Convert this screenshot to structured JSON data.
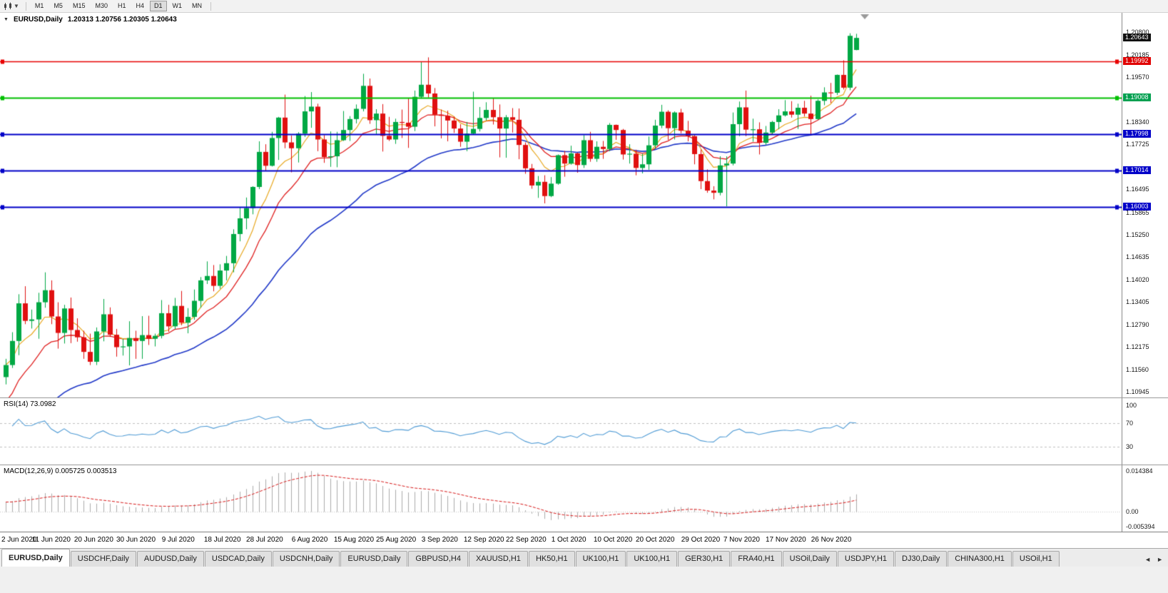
{
  "toolbar": {
    "timeframes": [
      "M1",
      "M5",
      "M15",
      "M30",
      "H1",
      "H4",
      "D1",
      "W1",
      "MN"
    ],
    "active": "D1"
  },
  "chart": {
    "header": {
      "symbol": "EURUSD,Daily",
      "ohlc": "1.20313 1.20756 1.20305 1.20643"
    },
    "price_axis": {
      "labels": [
        {
          "text": "1.20800",
          "value": 1.208
        },
        {
          "text": "1.20185",
          "value": 1.20185
        },
        {
          "text": "1.19570",
          "value": 1.1957
        },
        {
          "text": "1.18340",
          "value": 1.1834
        },
        {
          "text": "1.17725",
          "value": 1.17725
        },
        {
          "text": "1.16495",
          "value": 1.16495
        },
        {
          "text": "1.15865",
          "value": 1.15865
        },
        {
          "text": "1.15250",
          "value": 1.1525
        },
        {
          "text": "1.14635",
          "value": 1.14635
        },
        {
          "text": "1.14020",
          "value": 1.1402
        },
        {
          "text": "1.13405",
          "value": 1.13405
        },
        {
          "text": "1.12790",
          "value": 1.1279
        },
        {
          "text": "1.12175",
          "value": 1.12175
        },
        {
          "text": "1.11560",
          "value": 1.1156
        },
        {
          "text": "1.10945",
          "value": 1.10945
        }
      ],
      "badges": [
        {
          "text": "1.20643",
          "value": 1.20643,
          "bg": "#101010",
          "name": "current-price-badge"
        },
        {
          "text": "1.19992",
          "value": 1.19992,
          "bg": "#e00000",
          "name": "resistance-line-badge"
        },
        {
          "text": "1.19008",
          "value": 1.19008,
          "bg": "#00a050",
          "name": "support-line-badge"
        },
        {
          "text": "1.17998",
          "value": 1.17998,
          "bg": "#0000c8",
          "name": "level-line-badge"
        },
        {
          "text": "1.17014",
          "value": 1.17014,
          "bg": "#0000c8",
          "name": "level-line-badge"
        },
        {
          "text": "1.16003",
          "value": 1.16003,
          "bg": "#0000c8",
          "name": "level-line-badge"
        }
      ]
    },
    "horizontal_lines": [
      {
        "value": 1.19992,
        "color": "#e80000",
        "width": 1.4
      },
      {
        "value": 1.19008,
        "color": "#00c000",
        "width": 2
      },
      {
        "value": 1.17998,
        "color": "#0000c8",
        "width": 2
      },
      {
        "value": 1.17014,
        "color": "#0000c8",
        "width": 2
      },
      {
        "value": 1.16003,
        "color": "#0000c8",
        "width": 2
      }
    ],
    "time_axis": [
      {
        "text": "2 Jun 2020",
        "bar": 0
      },
      {
        "text": "11 Jun 2020",
        "bar": 7
      },
      {
        "text": "20 Jun 2020",
        "bar": 13.5
      },
      {
        "text": "30 Jun 2020",
        "bar": 20
      },
      {
        "text": "9 Jul 2020",
        "bar": 27
      },
      {
        "text": "18 Jul 2020",
        "bar": 33.5
      },
      {
        "text": "28 Jul 2020",
        "bar": 40
      },
      {
        "text": "6 Aug 2020",
        "bar": 47
      },
      {
        "text": "15 Aug 2020",
        "bar": 53.5
      },
      {
        "text": "25 Aug 2020",
        "bar": 60
      },
      {
        "text": "3 Sep 2020",
        "bar": 67
      },
      {
        "text": "12 Sep 2020",
        "bar": 73.5
      },
      {
        "text": "22 Sep 2020",
        "bar": 80
      },
      {
        "text": "1 Oct 2020",
        "bar": 87
      },
      {
        "text": "10 Oct 2020",
        "bar": 93.5
      },
      {
        "text": "20 Oct 2020",
        "bar": 100
      },
      {
        "text": "29 Oct 2020",
        "bar": 107
      },
      {
        "text": "7 Nov 2020",
        "bar": 113.5
      },
      {
        "text": "17 Nov 2020",
        "bar": 120
      },
      {
        "text": "26 Nov 2020",
        "bar": 127
      }
    ]
  },
  "chart_data": {
    "type": "candlestick",
    "symbol": "EURUSD",
    "period": "Daily",
    "y_range": [
      1.1085,
      1.209
    ],
    "bull_color": "#00a844",
    "bear_color": "#e01010",
    "moving_averages": [
      {
        "name": "ma-slow",
        "period": 34,
        "seed": 1.093,
        "color": "#2038c8",
        "width": 1.6
      },
      {
        "name": "ma-mid",
        "period": 13,
        "seed": 1.105,
        "color": "#e02020",
        "width": 1.3
      },
      {
        "name": "ma-fast",
        "period": 7,
        "seed": null,
        "color": "#e8a820",
        "width": 1.2
      }
    ],
    "candles": [
      [
        1.1135,
        1.1185,
        1.1115,
        1.1168
      ],
      [
        1.1168,
        1.1258,
        1.116,
        1.1234
      ],
      [
        1.1234,
        1.1362,
        1.1195,
        1.1337
      ],
      [
        1.1337,
        1.1384,
        1.128,
        1.1289
      ],
      [
        1.1289,
        1.132,
        1.1268,
        1.1293
      ],
      [
        1.1293,
        1.1366,
        1.124,
        1.134
      ],
      [
        1.134,
        1.1422,
        1.1325,
        1.1373
      ],
      [
        1.1373,
        1.14,
        1.128,
        1.1301
      ],
      [
        1.1301,
        1.134,
        1.1213,
        1.1256
      ],
      [
        1.1256,
        1.1333,
        1.1227,
        1.1323
      ],
      [
        1.1323,
        1.1353,
        1.1228,
        1.1264
      ],
      [
        1.1264,
        1.1296,
        1.1232,
        1.1244
      ],
      [
        1.1244,
        1.1262,
        1.1185,
        1.1204
      ],
      [
        1.1204,
        1.1254,
        1.1168,
        1.1177
      ],
      [
        1.1177,
        1.1271,
        1.1168,
        1.126
      ],
      [
        1.126,
        1.1349,
        1.1233,
        1.1307
      ],
      [
        1.1307,
        1.1326,
        1.1245,
        1.1251
      ],
      [
        1.1251,
        1.1267,
        1.1191,
        1.1217
      ],
      [
        1.1217,
        1.124,
        1.1194,
        1.1219
      ],
      [
        1.1219,
        1.1288,
        1.1167,
        1.1242
      ],
      [
        1.1242,
        1.1262,
        1.1185,
        1.1234
      ],
      [
        1.1234,
        1.1302,
        1.1185,
        1.125
      ],
      [
        1.125,
        1.1303,
        1.1223,
        1.124
      ],
      [
        1.124,
        1.1254,
        1.1219,
        1.1248
      ],
      [
        1.1248,
        1.1346,
        1.1241,
        1.131
      ],
      [
        1.131,
        1.1333,
        1.1259,
        1.1274
      ],
      [
        1.1274,
        1.1352,
        1.1266,
        1.133
      ],
      [
        1.133,
        1.1371,
        1.1277,
        1.1284
      ],
      [
        1.1284,
        1.1324,
        1.1255,
        1.13
      ],
      [
        1.13,
        1.1375,
        1.1292,
        1.1344
      ],
      [
        1.1344,
        1.1409,
        1.1325,
        1.14
      ],
      [
        1.14,
        1.1452,
        1.139,
        1.1412
      ],
      [
        1.1412,
        1.1442,
        1.137,
        1.1385
      ],
      [
        1.1385,
        1.1444,
        1.1377,
        1.1427
      ],
      [
        1.1427,
        1.1467,
        1.14,
        1.1447
      ],
      [
        1.1447,
        1.154,
        1.1422,
        1.1527
      ],
      [
        1.1527,
        1.1601,
        1.1507,
        1.157
      ],
      [
        1.157,
        1.1627,
        1.154,
        1.1598
      ],
      [
        1.1598,
        1.1658,
        1.1581,
        1.1656
      ],
      [
        1.1656,
        1.1781,
        1.165,
        1.1752
      ],
      [
        1.1752,
        1.1773,
        1.17,
        1.1714
      ],
      [
        1.1714,
        1.1807,
        1.1712,
        1.179
      ],
      [
        1.179,
        1.1848,
        1.173,
        1.1846
      ],
      [
        1.1846,
        1.1909,
        1.1762,
        1.1778
      ],
      [
        1.1778,
        1.1797,
        1.1696,
        1.1762
      ],
      [
        1.1762,
        1.1806,
        1.1723,
        1.1802
      ],
      [
        1.1802,
        1.1905,
        1.1793,
        1.1863
      ],
      [
        1.1863,
        1.1916,
        1.1818,
        1.1876
      ],
      [
        1.1876,
        1.1884,
        1.1754,
        1.1786
      ],
      [
        1.1786,
        1.1798,
        1.1722,
        1.1738
      ],
      [
        1.1738,
        1.1808,
        1.1711,
        1.174
      ],
      [
        1.174,
        1.1807,
        1.171,
        1.1784
      ],
      [
        1.1784,
        1.1864,
        1.1782,
        1.1812
      ],
      [
        1.1812,
        1.185,
        1.1782,
        1.1842
      ],
      [
        1.1842,
        1.1882,
        1.183,
        1.187
      ],
      [
        1.187,
        1.1966,
        1.1863,
        1.1933
      ],
      [
        1.1933,
        1.1953,
        1.1829,
        1.1839
      ],
      [
        1.1839,
        1.1869,
        1.1801,
        1.1857
      ],
      [
        1.1857,
        1.1883,
        1.1753,
        1.1796
      ],
      [
        1.1796,
        1.1848,
        1.1782,
        1.1786
      ],
      [
        1.1786,
        1.1843,
        1.1774,
        1.1834
      ],
      [
        1.1834,
        1.1868,
        1.179,
        1.1832
      ],
      [
        1.1832,
        1.19,
        1.1763,
        1.1821
      ],
      [
        1.1821,
        1.192,
        1.1809,
        1.1903
      ],
      [
        1.1903,
        1.1998,
        1.1898,
        1.1936
      ],
      [
        1.1936,
        1.2011,
        1.1901,
        1.1912
      ],
      [
        1.1912,
        1.1927,
        1.1822,
        1.1854
      ],
      [
        1.1854,
        1.1868,
        1.1789,
        1.1851
      ],
      [
        1.1851,
        1.1865,
        1.1781,
        1.1838
      ],
      [
        1.1838,
        1.1849,
        1.1804,
        1.1816
      ],
      [
        1.1816,
        1.1828,
        1.1766,
        1.178
      ],
      [
        1.178,
        1.1834,
        1.1754,
        1.1802
      ],
      [
        1.1802,
        1.1917,
        1.1799,
        1.1815
      ],
      [
        1.1815,
        1.1875,
        1.1808,
        1.1845
      ],
      [
        1.1845,
        1.1888,
        1.1838,
        1.1867
      ],
      [
        1.1867,
        1.19,
        1.1827,
        1.1847
      ],
      [
        1.1847,
        1.1882,
        1.1737,
        1.1816
      ],
      [
        1.1816,
        1.1853,
        1.1736,
        1.1847
      ],
      [
        1.1847,
        1.1872,
        1.1805,
        1.184
      ],
      [
        1.184,
        1.1871,
        1.1732,
        1.1771
      ],
      [
        1.1771,
        1.1778,
        1.1692,
        1.1707
      ],
      [
        1.1707,
        1.1719,
        1.1651,
        1.166
      ],
      [
        1.166,
        1.1686,
        1.1626,
        1.167
      ],
      [
        1.167,
        1.1688,
        1.1611,
        1.1631
      ],
      [
        1.1631,
        1.1683,
        1.1628,
        1.1665
      ],
      [
        1.1665,
        1.1745,
        1.1662,
        1.1743
      ],
      [
        1.1743,
        1.1755,
        1.1684,
        1.172
      ],
      [
        1.172,
        1.1769,
        1.1717,
        1.1748
      ],
      [
        1.1748,
        1.175,
        1.1695,
        1.1716
      ],
      [
        1.1716,
        1.1798,
        1.1708,
        1.1784
      ],
      [
        1.1784,
        1.1807,
        1.1725,
        1.1733
      ],
      [
        1.1733,
        1.1781,
        1.1725,
        1.1766
      ],
      [
        1.1766,
        1.1782,
        1.1733,
        1.176
      ],
      [
        1.176,
        1.1831,
        1.1754,
        1.1826
      ],
      [
        1.1826,
        1.1827,
        1.1785,
        1.1812
      ],
      [
        1.1812,
        1.1815,
        1.1731,
        1.1745
      ],
      [
        1.1745,
        1.1773,
        1.172,
        1.1747
      ],
      [
        1.1747,
        1.1758,
        1.1688,
        1.1708
      ],
      [
        1.1708,
        1.1747,
        1.1693,
        1.1718
      ],
      [
        1.1718,
        1.1794,
        1.1703,
        1.177
      ],
      [
        1.177,
        1.184,
        1.176,
        1.1824
      ],
      [
        1.1824,
        1.1881,
        1.1817,
        1.1862
      ],
      [
        1.1862,
        1.1866,
        1.1785,
        1.1817
      ],
      [
        1.1817,
        1.1863,
        1.1786,
        1.186
      ],
      [
        1.186,
        1.187,
        1.1803,
        1.181
      ],
      [
        1.181,
        1.1837,
        1.1781,
        1.1795
      ],
      [
        1.1795,
        1.18,
        1.1718,
        1.1746
      ],
      [
        1.1746,
        1.1759,
        1.165,
        1.1672
      ],
      [
        1.1672,
        1.1704,
        1.164,
        1.1646
      ],
      [
        1.1646,
        1.1658,
        1.1622,
        1.164
      ],
      [
        1.164,
        1.174,
        1.1633,
        1.1715
      ],
      [
        1.1715,
        1.174,
        1.1603,
        1.172
      ],
      [
        1.172,
        1.186,
        1.1715,
        1.1828
      ],
      [
        1.1828,
        1.189,
        1.1795,
        1.1874
      ],
      [
        1.1874,
        1.192,
        1.1795,
        1.1813
      ],
      [
        1.1813,
        1.1843,
        1.178,
        1.1814
      ],
      [
        1.1814,
        1.1833,
        1.1745,
        1.1777
      ],
      [
        1.1777,
        1.1823,
        1.1771,
        1.1805
      ],
      [
        1.1805,
        1.1837,
        1.1799,
        1.1834
      ],
      [
        1.1834,
        1.1869,
        1.1814,
        1.1852
      ],
      [
        1.1852,
        1.1894,
        1.1849,
        1.1863
      ],
      [
        1.1863,
        1.1891,
        1.1846,
        1.1854
      ],
      [
        1.1854,
        1.1884,
        1.1815,
        1.1873
      ],
      [
        1.1873,
        1.1892,
        1.1849,
        1.1857
      ],
      [
        1.1857,
        1.1906,
        1.18,
        1.1842
      ],
      [
        1.1842,
        1.1896,
        1.184,
        1.1892
      ],
      [
        1.1892,
        1.1929,
        1.188,
        1.1915
      ],
      [
        1.1915,
        1.1941,
        1.1886,
        1.1914
      ],
      [
        1.1914,
        1.1964,
        1.1908,
        1.1963
      ],
      [
        1.1963,
        1.2003,
        1.1923,
        1.1928
      ],
      [
        1.1928,
        1.2077,
        1.1921,
        1.207
      ],
      [
        1.20313,
        1.20756,
        1.20305,
        1.20643
      ]
    ]
  },
  "rsi": {
    "label": "RSI(14) 73.0982",
    "period": 14,
    "line_color": "#4f9bd5",
    "level_color": "#bfbfbf",
    "levels": [
      70,
      30
    ],
    "axis": [
      {
        "text": "100",
        "value": 100
      },
      {
        "text": "70",
        "value": 70
      },
      {
        "text": "30",
        "value": 30
      }
    ]
  },
  "macd": {
    "label": "MACD(12,26,9) 0.005725 0.003513",
    "fast": 12,
    "slow": 26,
    "signal": 9,
    "histogram_color": "#ababab",
    "signal_color": "#d81818",
    "zero_color": "#c8c8c8",
    "axis": [
      {
        "text": "0.014384",
        "value": 0.014384
      },
      {
        "text": "0.00",
        "value": 0
      },
      {
        "text": "-0.005394",
        "value": -0.005394
      }
    ]
  },
  "tabs": {
    "active_index": 0,
    "items": [
      "EURUSD,Daily",
      "USDCHF,Daily",
      "AUDUSD,Daily",
      "USDCAD,Daily",
      "USDCNH,Daily",
      "EURUSD,Daily",
      "GBPUSD,H4",
      "XAUUSD,H1",
      "HK50,H1",
      "UK100,H1",
      "UK100,H1",
      "GER30,H1",
      "FRA40,H1",
      "USOil,Daily",
      "USDJPY,H1",
      "DJ30,Daily",
      "CHINA300,H1",
      "USOil,H1"
    ],
    "scroll_left": "◄",
    "scroll_right": "►"
  }
}
